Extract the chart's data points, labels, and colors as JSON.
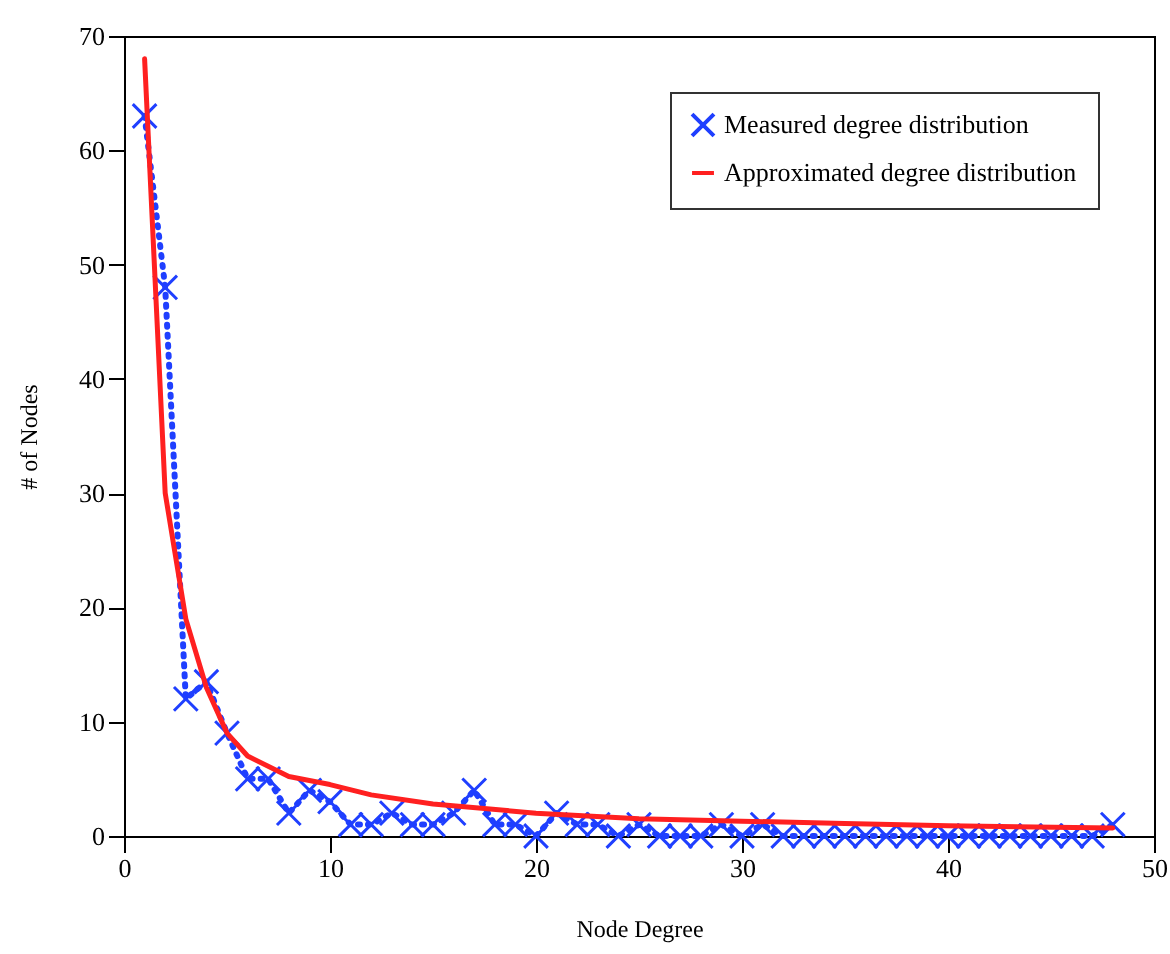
{
  "chart_data": {
    "type": "line",
    "xlabel": "Node Degree",
    "ylabel": "# of Nodes",
    "xlim": [
      0,
      50
    ],
    "ylim": [
      0,
      70
    ],
    "xticks": [
      0,
      10,
      20,
      30,
      40,
      50
    ],
    "yticks": [
      0,
      10,
      20,
      30,
      40,
      50,
      60,
      70
    ],
    "grid": false,
    "legend": "top right",
    "series": [
      {
        "name": "Measured degree distribution",
        "color": "#1f3fff",
        "marker": "cross",
        "line_style": "dotted",
        "x": [
          1,
          2,
          3,
          4,
          5,
          6,
          7,
          8,
          9,
          10,
          11,
          12,
          13,
          14,
          15,
          16,
          17,
          18,
          19,
          20,
          21,
          22,
          23,
          24,
          25,
          26,
          27,
          28,
          29,
          30,
          31,
          32,
          33,
          34,
          35,
          36,
          37,
          38,
          39,
          40,
          41,
          42,
          43,
          44,
          45,
          46,
          47,
          48
        ],
        "values": [
          63,
          48,
          12,
          13.5,
          9,
          5,
          5,
          2,
          4,
          3,
          1,
          1,
          2,
          1,
          1,
          2,
          4,
          1,
          1,
          0,
          2,
          1,
          1,
          0,
          1,
          0,
          0,
          0,
          1,
          0,
          1,
          0,
          0,
          0,
          0,
          0,
          0,
          0,
          0,
          0,
          0,
          0,
          0,
          0,
          0,
          0,
          0,
          1
        ]
      },
      {
        "name": "Approximated degree distribution",
        "color": "#ff2020",
        "marker": "none",
        "line_style": "solid",
        "x": [
          1,
          2,
          3,
          4,
          5,
          6,
          8,
          10,
          12,
          15,
          20,
          25,
          30,
          35,
          40,
          48
        ],
        "values": [
          68,
          30,
          19,
          13,
          9,
          7,
          5.2,
          4.5,
          3.6,
          2.8,
          2,
          1.5,
          1.3,
          1.1,
          0.9,
          0.7
        ]
      }
    ]
  }
}
